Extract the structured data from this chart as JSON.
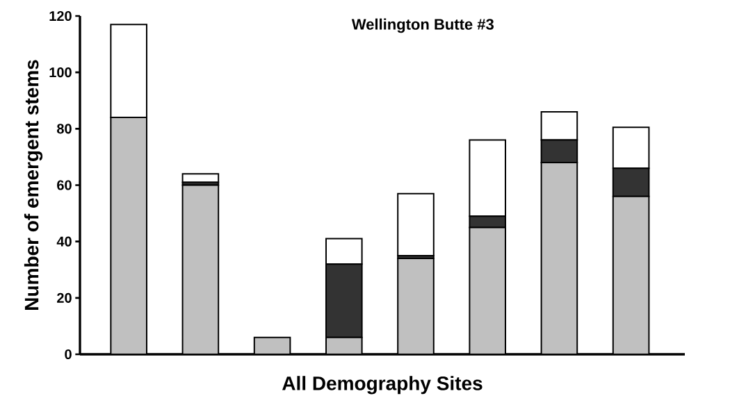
{
  "chart_data": {
    "type": "bar",
    "title": "Wellington Butte #3",
    "xlabel": "All Demography Sites",
    "ylabel": "Number of emergent stems",
    "categories": [
      null,
      null,
      null,
      null,
      null,
      null,
      null,
      null
    ],
    "stacked": true,
    "series": [
      {
        "color": "#c0c0c0",
        "values": [
          84,
          60,
          6,
          6,
          34,
          45,
          68,
          56
        ]
      },
      {
        "color": "#333333",
        "values": [
          0,
          1,
          0,
          26,
          1,
          4,
          8,
          10
        ]
      },
      {
        "color": "#ffffff",
        "values": [
          33,
          3,
          0,
          9,
          22,
          27,
          10,
          14.5
        ]
      }
    ],
    "ylim": [
      0,
      120
    ],
    "yticks": [
      0,
      20,
      40,
      60,
      80,
      100,
      120
    ],
    "grid": false
  }
}
